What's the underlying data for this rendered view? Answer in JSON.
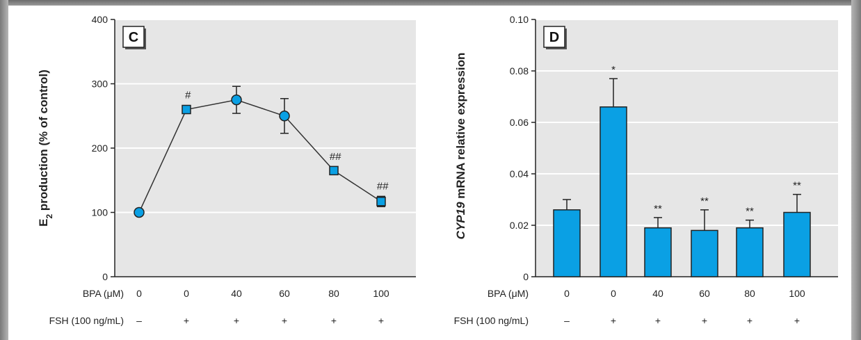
{
  "chart_data": [
    {
      "type": "line",
      "panel_label": "C",
      "ylabel": "E2 production (% of control)",
      "ylabel_main": "E",
      "ylabel_sub": "2",
      "ylabel_rest": " production (% of control)",
      "ylim": [
        0,
        400
      ],
      "yticks": [
        "0",
        "100",
        "200",
        "300",
        "400"
      ],
      "grid": true,
      "row_labels": [
        "BPA (μM)",
        "FSH (100 ng/mL)"
      ],
      "categories": [
        "0",
        "0",
        "40",
        "60",
        "80",
        "100"
      ],
      "fsh": [
        "–",
        "+",
        "+",
        "+",
        "+",
        "+"
      ],
      "values": [
        100,
        260,
        275,
        250,
        165,
        117
      ],
      "errors": [
        0,
        0,
        21,
        27,
        6,
        8
      ],
      "markers": [
        "circle",
        "square",
        "circle",
        "circle",
        "square",
        "square"
      ],
      "annotations": [
        "",
        "#",
        "",
        "",
        "##",
        "##"
      ]
    },
    {
      "type": "bar",
      "panel_label": "D",
      "ylabel": "CYP19 mRNA relative expression",
      "ylabel_italic": "CYP19",
      "ylabel_rest": " mRNA relative expression",
      "ylim": [
        0,
        0.1
      ],
      "yticks": [
        "0",
        "0.02",
        "0.04",
        "0.06",
        "0.08",
        "0.10"
      ],
      "grid": true,
      "row_labels": [
        "BPA (μM)",
        "FSH (100 ng/mL)"
      ],
      "categories": [
        "0",
        "0",
        "40",
        "60",
        "80",
        "100"
      ],
      "fsh": [
        "–",
        "+",
        "+",
        "+",
        "+",
        "+"
      ],
      "values": [
        0.026,
        0.066,
        0.019,
        0.018,
        0.019,
        0.025
      ],
      "errors": [
        0.004,
        0.011,
        0.004,
        0.008,
        0.003,
        0.007
      ],
      "annotations": [
        "",
        "*",
        "**",
        "**",
        "**",
        "**"
      ]
    }
  ],
  "colors": {
    "plot_bg": "#e6e6e6",
    "grid": "#ffffff",
    "series": "#0aa0e4",
    "axis": "#222222"
  }
}
